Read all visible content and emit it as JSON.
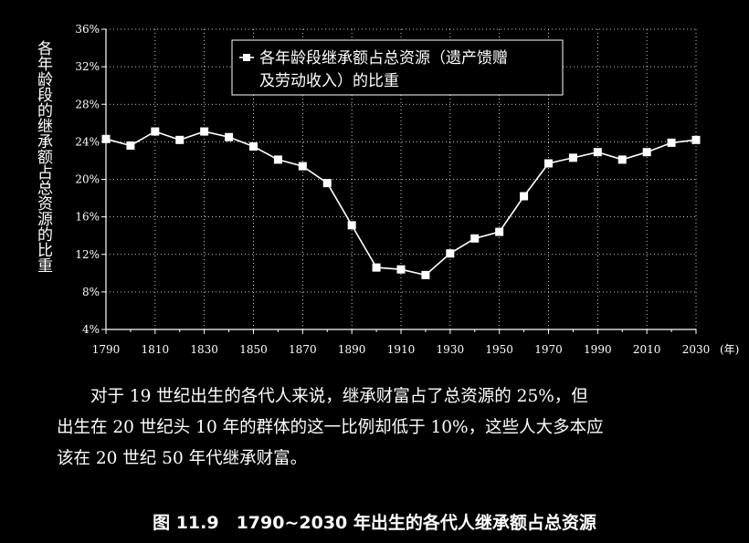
{
  "chart_data": {
    "type": "line",
    "title": "",
    "ylabel": "各年龄段的继承额占总资源的比重",
    "xlabel": "",
    "x_unit": "(年)",
    "ylim": [
      4,
      36
    ],
    "xlim": [
      1790,
      2030
    ],
    "grid": true,
    "legend_position": "top-center",
    "x_ticks": [
      "1790",
      "1810",
      "1830",
      "1850",
      "1870",
      "1890",
      "1910",
      "1930",
      "1950",
      "1970",
      "1990",
      "2010",
      "2030"
    ],
    "y_ticks": [
      "4%",
      "8%",
      "12%",
      "16%",
      "20%",
      "24%",
      "28%",
      "32%",
      "36%"
    ],
    "series": [
      {
        "name": "各年龄段继承额占总资源（遗产馈赠及劳动收入）的比重",
        "legend_lines": [
          "各年龄段继承额占总资源（遗产馈赠",
          "及劳动收入）的比重"
        ],
        "color": "#ffffff",
        "x": [
          1790,
          1800,
          1810,
          1820,
          1830,
          1840,
          1850,
          1860,
          1870,
          1880,
          1890,
          1900,
          1910,
          1920,
          1930,
          1940,
          1950,
          1960,
          1970,
          1980,
          1990,
          2000,
          2010,
          2020,
          2030
        ],
        "values": [
          24.3,
          23.6,
          25.1,
          24.2,
          25.1,
          24.5,
          23.5,
          22.1,
          21.4,
          19.6,
          15.1,
          10.6,
          10.4,
          9.8,
          12.1,
          13.7,
          14.4,
          18.2,
          21.7,
          22.3,
          22.9,
          22.1,
          22.9,
          23.9,
          24.2
        ]
      }
    ]
  },
  "body": {
    "line1": "对于 19 世纪出生的各代人来说，继承财富占了总资源的 25%，但",
    "line2": "出生在 20 世纪头 10 年的群体的这一比例却低于 10%，这些人大多本应",
    "line3": "该在 20 世纪 50 年代继承财富。"
  },
  "caption": "图 11.9　1790~2030 年出生的各代人继承额占总资源"
}
